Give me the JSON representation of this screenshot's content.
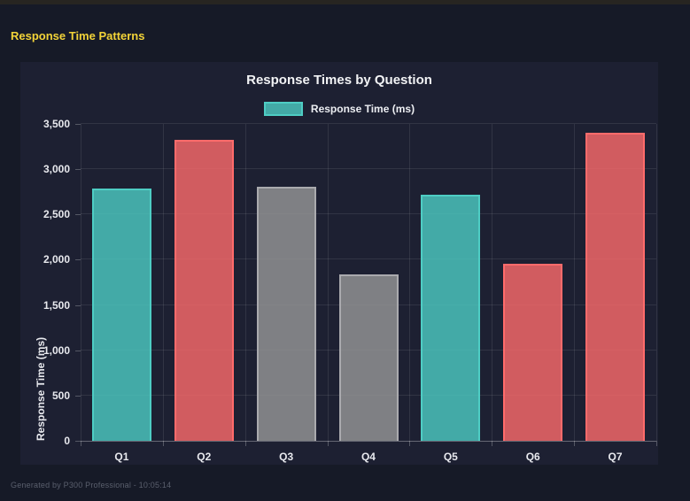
{
  "page": {
    "heading": "Response Time Patterns",
    "footer": "Generated by P300 Professional - 10:05:14"
  },
  "chart_data": {
    "type": "bar",
    "title": "Response Times by Question",
    "xlabel": "",
    "ylabel": "Response Time (ms)",
    "categories": [
      "Q1",
      "Q2",
      "Q3",
      "Q4",
      "Q5",
      "Q6",
      "Q7"
    ],
    "values": [
      2790,
      3320,
      2805,
      1840,
      2720,
      1955,
      3400
    ],
    "ylim": [
      0,
      3500
    ],
    "ytick_step": 500,
    "grid": true,
    "legend_position": "top",
    "legend": [
      {
        "label": "Response Time (ms)",
        "fill": "rgba(78,205,196,0.8)",
        "border": "#4ecdc4"
      }
    ],
    "bar_colors": [
      {
        "name": "teal",
        "fill": "rgba(78,205,196,0.8)",
        "border": "#4ecdc4"
      },
      {
        "name": "red",
        "fill": "rgba(255,107,107,0.8)",
        "border": "#ff6b6b"
      },
      {
        "name": "gray",
        "fill": "rgba(153,153,153,0.8)",
        "border": "#aaaaae"
      },
      {
        "name": "gray",
        "fill": "rgba(153,153,153,0.8)",
        "border": "#aaaaae"
      },
      {
        "name": "teal",
        "fill": "rgba(78,205,196,0.8)",
        "border": "#4ecdc4"
      },
      {
        "name": "red",
        "fill": "rgba(255,107,107,0.8)",
        "border": "#ff6b6b"
      },
      {
        "name": "red",
        "fill": "rgba(255,107,107,0.8)",
        "border": "#ff6b6b"
      }
    ],
    "colors": {
      "page_background": "#161a27",
      "panel_background": "#1d2032",
      "heading_yellow": "#f2d338",
      "gridline": "rgba(255,255,255,0.09)"
    }
  }
}
